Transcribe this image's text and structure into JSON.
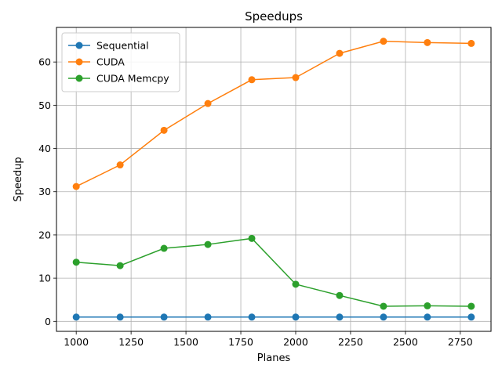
{
  "chart_data": {
    "type": "line",
    "title": "Speedups",
    "xlabel": "Planes",
    "ylabel": "Speedup",
    "x": [
      1000,
      1200,
      1400,
      1600,
      1800,
      2000,
      2200,
      2400,
      2600,
      2800
    ],
    "xlim": [
      910,
      2890
    ],
    "ylim": [
      -2.3,
      68
    ],
    "xticks": [
      1000,
      1250,
      1500,
      1750,
      2000,
      2250,
      2500,
      2750
    ],
    "yticks": [
      0,
      10,
      20,
      30,
      40,
      50,
      60
    ],
    "grid": true,
    "legend_position": "upper-left",
    "series": [
      {
        "name": "Sequential",
        "color": "#1f77b4",
        "values": [
          1,
          1,
          1,
          1,
          1,
          1,
          1,
          1,
          1,
          1
        ]
      },
      {
        "name": "CUDA",
        "color": "#ff7f0e",
        "values": [
          31.2,
          36.2,
          44.2,
          50.4,
          55.9,
          56.4,
          62.0,
          64.8,
          64.5,
          64.3
        ]
      },
      {
        "name": "CUDA Memcpy",
        "color": "#2ca02c",
        "values": [
          13.7,
          12.9,
          16.9,
          17.8,
          19.2,
          8.6,
          6.0,
          3.5,
          3.6,
          3.5
        ]
      }
    ]
  }
}
